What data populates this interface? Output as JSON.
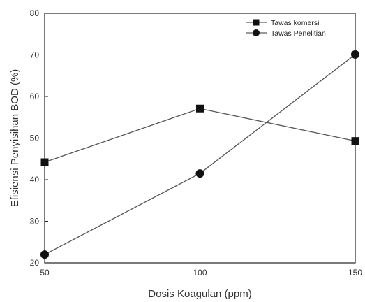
{
  "chart_data": {
    "type": "line",
    "xlabel": "Dosis Koagulan (ppm)",
    "ylabel": "Efisiensi Penyisihan BOD (%)",
    "xlim": [
      50,
      150
    ],
    "ylim": [
      20,
      80
    ],
    "xticks": [
      50,
      100,
      150
    ],
    "yticks": [
      20,
      30,
      40,
      50,
      60,
      70,
      80
    ],
    "grid": false,
    "legend_position": "top-right",
    "series": [
      {
        "name": "Tawas komersil",
        "marker": "square",
        "color": "#111111",
        "x": [
          50,
          100,
          150
        ],
        "y": [
          44.2,
          57.1,
          49.3
        ]
      },
      {
        "name": "Tawas Penelitian",
        "marker": "circle",
        "color": "#111111",
        "x": [
          50,
          100,
          150
        ],
        "y": [
          22.0,
          41.5,
          70.1
        ]
      }
    ]
  }
}
